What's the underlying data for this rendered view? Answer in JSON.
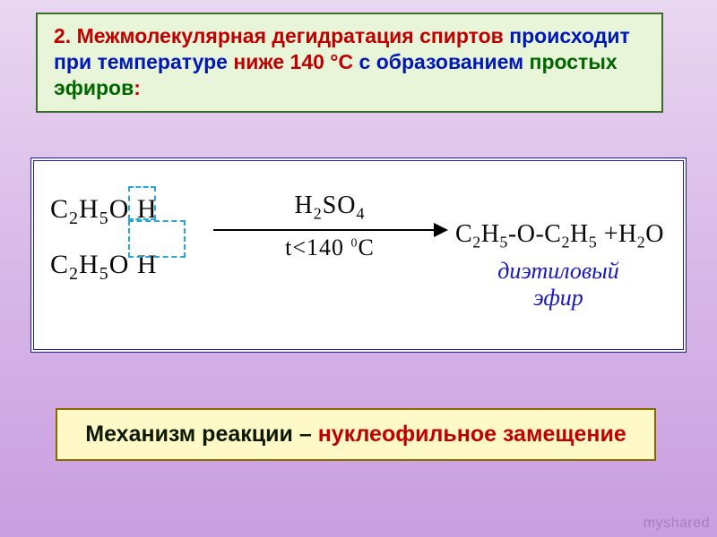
{
  "topBox": {
    "borderColor": "#3a6b2a",
    "bgColor": "#e8f5d8",
    "segments": [
      {
        "text": "2. Межмолекулярная дегидратация спиртов",
        "color": "#c00000"
      },
      {
        "text": " происходит при температуре ",
        "color": "#0018b8"
      },
      {
        "text": "ниже 140 °С",
        "color": "#c00000"
      },
      {
        "text": " с образованием ",
        "color": "#0018b8"
      },
      {
        "text": "простых эфиров",
        "color": "#006600"
      },
      {
        "text": ":",
        "color": "#c00000"
      }
    ]
  },
  "reaction": {
    "reagent1": "C2H5OH",
    "reagent2": "C2H5OH",
    "catalyst": "H2SO4",
    "condition_prefix": "t<140",
    "condition_unit": "C",
    "product_formula": "C2H5-O-C2H5 +H2O",
    "product_label_line1": "диэтиловый",
    "product_label_line2": "эфир",
    "product_label_color": "#1818c0",
    "dashed_color": "#2aa5d8",
    "box_border": "#1a1ab0"
  },
  "bottomBox": {
    "bgColor": "#fff9c8",
    "borderColor": "#8a6a00",
    "segments": [
      {
        "text": "Механизм реакции – ",
        "color": "#0b1a00"
      },
      {
        "text": "нуклеофильное замещение",
        "color": "#c00000"
      }
    ]
  },
  "watermark": "myshared"
}
